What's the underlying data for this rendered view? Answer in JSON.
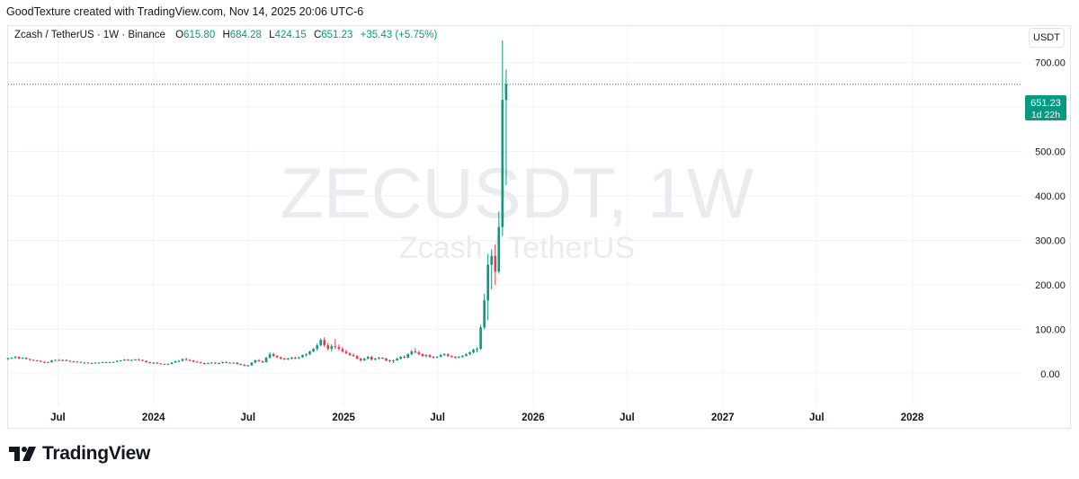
{
  "header": {
    "caption": "GoodTexture created with TradingView.com, Nov 14, 2025 20:06 UTC-6"
  },
  "legend": {
    "symbol": "Zcash / TetherUS · 1W · Binance",
    "o_key": "O",
    "o_val": "615.80",
    "h_key": "H",
    "h_val": "684.28",
    "l_key": "L",
    "l_val": "424.15",
    "c_key": "C",
    "c_val": "651.23",
    "change": "+35.43 (+5.75%)"
  },
  "currency": "USDT",
  "watermark": {
    "line1": "ZECUSDT, 1W",
    "line2": "Zcash / TetherUS"
  },
  "price_label": {
    "price": "651.23",
    "countdown": "1d 22h"
  },
  "brand": {
    "name": "TradingView"
  },
  "colors": {
    "up": "#089981",
    "down": "#f23645",
    "grid": "#f0f3fa",
    "text": "#131722"
  },
  "chart_data": {
    "type": "candlestick",
    "y_ticks": [
      "0.00",
      "100.00",
      "200.00",
      "300.00",
      "400.00",
      "500.00",
      "600.00",
      "700.00"
    ],
    "y_tick_values": [
      0,
      100,
      200,
      300,
      400,
      500,
      600,
      700
    ],
    "x_ticks": [
      {
        "label": "Jul",
        "date": "2023-07-01"
      },
      {
        "label": "2024",
        "date": "2024-01-01"
      },
      {
        "label": "Jul",
        "date": "2024-07-01"
      },
      {
        "label": "2025",
        "date": "2025-01-01"
      },
      {
        "label": "Jul",
        "date": "2025-07-01"
      },
      {
        "label": "2026",
        "date": "2026-01-01"
      },
      {
        "label": "Jul",
        "date": "2026-07-01"
      },
      {
        "label": "2027",
        "date": "2027-01-01"
      },
      {
        "label": "Jul",
        "date": "2027-07-01"
      },
      {
        "label": "2028",
        "date": "2028-01-01"
      }
    ],
    "x_range": [
      "2023-03-27",
      "2028-07-31"
    ],
    "y_range": [
      -73,
      782
    ],
    "last_price": 651.23,
    "candles": [
      [
        "2023-03-27",
        33,
        36,
        31,
        35
      ],
      [
        "2023-04-03",
        35,
        37,
        33,
        36
      ],
      [
        "2023-04-10",
        36,
        40,
        34,
        38
      ],
      [
        "2023-04-17",
        38,
        39,
        33,
        34
      ],
      [
        "2023-04-24",
        34,
        37,
        33,
        36
      ],
      [
        "2023-05-01",
        36,
        37,
        32,
        33
      ],
      [
        "2023-05-08",
        33,
        34,
        30,
        31
      ],
      [
        "2023-05-15",
        31,
        32,
        29,
        30
      ],
      [
        "2023-05-22",
        30,
        31,
        28,
        29
      ],
      [
        "2023-05-29",
        29,
        30,
        26,
        27
      ],
      [
        "2023-06-05",
        27,
        28,
        23,
        25
      ],
      [
        "2023-06-12",
        25,
        27,
        24,
        26
      ],
      [
        "2023-06-19",
        26,
        31,
        25,
        30
      ],
      [
        "2023-06-26",
        30,
        32,
        29,
        31
      ],
      [
        "2023-07-03",
        31,
        33,
        29,
        30
      ],
      [
        "2023-07-10",
        30,
        32,
        28,
        31
      ],
      [
        "2023-07-17",
        31,
        32,
        28,
        29
      ],
      [
        "2023-07-24",
        29,
        30,
        27,
        28
      ],
      [
        "2023-07-31",
        28,
        29,
        26,
        27
      ],
      [
        "2023-08-07",
        27,
        28,
        26,
        27
      ],
      [
        "2023-08-14",
        27,
        27,
        24,
        25
      ],
      [
        "2023-08-21",
        25,
        26,
        24,
        25
      ],
      [
        "2023-08-28",
        25,
        26,
        24,
        24
      ],
      [
        "2023-09-04",
        24,
        25,
        23,
        24
      ],
      [
        "2023-09-11",
        24,
        26,
        23,
        25
      ],
      [
        "2023-09-18",
        25,
        26,
        24,
        25
      ],
      [
        "2023-09-25",
        25,
        27,
        24,
        26
      ],
      [
        "2023-10-02",
        26,
        27,
        25,
        26
      ],
      [
        "2023-10-09",
        26,
        26,
        24,
        25
      ],
      [
        "2023-10-16",
        25,
        27,
        24,
        27
      ],
      [
        "2023-10-23",
        27,
        30,
        26,
        29
      ],
      [
        "2023-10-30",
        29,
        31,
        28,
        30
      ],
      [
        "2023-11-06",
        30,
        33,
        29,
        32
      ],
      [
        "2023-11-13",
        32,
        33,
        29,
        30
      ],
      [
        "2023-11-20",
        30,
        32,
        29,
        31
      ],
      [
        "2023-11-27",
        31,
        33,
        30,
        32
      ],
      [
        "2023-12-04",
        32,
        34,
        30,
        31
      ],
      [
        "2023-12-11",
        31,
        32,
        28,
        29
      ],
      [
        "2023-12-18",
        29,
        30,
        25,
        26
      ],
      [
        "2023-12-25",
        26,
        27,
        23,
        24
      ],
      [
        "2024-01-01",
        24,
        26,
        22,
        25
      ],
      [
        "2024-01-08",
        25,
        26,
        22,
        23
      ],
      [
        "2024-01-15",
        23,
        24,
        21,
        22
      ],
      [
        "2024-01-22",
        22,
        23,
        20,
        21
      ],
      [
        "2024-01-29",
        21,
        23,
        20,
        22
      ],
      [
        "2024-02-05",
        22,
        26,
        21,
        25
      ],
      [
        "2024-02-12",
        25,
        29,
        24,
        28
      ],
      [
        "2024-02-19",
        28,
        31,
        26,
        29
      ],
      [
        "2024-02-26",
        29,
        34,
        28,
        33
      ],
      [
        "2024-03-04",
        33,
        36,
        30,
        31
      ],
      [
        "2024-03-11",
        31,
        33,
        28,
        30
      ],
      [
        "2024-03-18",
        30,
        31,
        26,
        27
      ],
      [
        "2024-03-25",
        27,
        29,
        25,
        26
      ],
      [
        "2024-04-01",
        26,
        27,
        23,
        24
      ],
      [
        "2024-04-08",
        24,
        25,
        21,
        23
      ],
      [
        "2024-04-15",
        23,
        25,
        22,
        24
      ],
      [
        "2024-04-22",
        24,
        26,
        23,
        25
      ],
      [
        "2024-04-29",
        25,
        26,
        22,
        23
      ],
      [
        "2024-05-06",
        23,
        25,
        22,
        24
      ],
      [
        "2024-05-13",
        24,
        27,
        23,
        26
      ],
      [
        "2024-05-20",
        26,
        28,
        24,
        25
      ],
      [
        "2024-05-27",
        25,
        26,
        23,
        24
      ],
      [
        "2024-06-03",
        24,
        26,
        23,
        25
      ],
      [
        "2024-06-10",
        25,
        26,
        21,
        22
      ],
      [
        "2024-06-17",
        22,
        23,
        19,
        20
      ],
      [
        "2024-06-24",
        20,
        22,
        17,
        18
      ],
      [
        "2024-07-01",
        18,
        20,
        16,
        19
      ],
      [
        "2024-07-08",
        19,
        26,
        18,
        25
      ],
      [
        "2024-07-15",
        25,
        32,
        24,
        30
      ],
      [
        "2024-07-22",
        30,
        33,
        27,
        28
      ],
      [
        "2024-07-29",
        28,
        30,
        24,
        26
      ],
      [
        "2024-08-05",
        26,
        38,
        25,
        36
      ],
      [
        "2024-08-12",
        36,
        48,
        34,
        44
      ],
      [
        "2024-08-19",
        44,
        47,
        38,
        40
      ],
      [
        "2024-08-26",
        40,
        42,
        35,
        37
      ],
      [
        "2024-09-02",
        37,
        39,
        32,
        34
      ],
      [
        "2024-09-09",
        34,
        36,
        31,
        33
      ],
      [
        "2024-09-16",
        33,
        36,
        31,
        34
      ],
      [
        "2024-09-23",
        34,
        38,
        32,
        36
      ],
      [
        "2024-09-30",
        36,
        38,
        33,
        35
      ],
      [
        "2024-10-07",
        35,
        38,
        33,
        37
      ],
      [
        "2024-10-14",
        37,
        43,
        36,
        42
      ],
      [
        "2024-10-21",
        42,
        46,
        39,
        44
      ],
      [
        "2024-10-28",
        44,
        52,
        42,
        50
      ],
      [
        "2024-11-04",
        50,
        58,
        48,
        56
      ],
      [
        "2024-11-11",
        56,
        68,
        52,
        64
      ],
      [
        "2024-11-18",
        64,
        80,
        62,
        76
      ],
      [
        "2024-11-25",
        76,
        82,
        60,
        64
      ],
      [
        "2024-12-02",
        64,
        70,
        52,
        56
      ],
      [
        "2024-12-09",
        56,
        66,
        50,
        62
      ],
      [
        "2024-12-16",
        62,
        78,
        56,
        60
      ],
      [
        "2024-12-23",
        60,
        66,
        52,
        56
      ],
      [
        "2024-12-30",
        56,
        60,
        48,
        50
      ],
      [
        "2025-01-06",
        50,
        54,
        44,
        46
      ],
      [
        "2025-01-13",
        46,
        48,
        40,
        42
      ],
      [
        "2025-01-20",
        42,
        46,
        38,
        40
      ],
      [
        "2025-01-27",
        40,
        42,
        32,
        34
      ],
      [
        "2025-02-03",
        34,
        36,
        27,
        30
      ],
      [
        "2025-02-10",
        30,
        36,
        29,
        34
      ],
      [
        "2025-02-17",
        34,
        40,
        32,
        38
      ],
      [
        "2025-02-24",
        38,
        40,
        30,
        32
      ],
      [
        "2025-03-03",
        32,
        36,
        30,
        34
      ],
      [
        "2025-03-10",
        34,
        38,
        32,
        36
      ],
      [
        "2025-03-17",
        36,
        37,
        33,
        34
      ],
      [
        "2025-03-24",
        34,
        36,
        28,
        30
      ],
      [
        "2025-03-31",
        30,
        32,
        26,
        28
      ],
      [
        "2025-04-07",
        28,
        32,
        24,
        30
      ],
      [
        "2025-04-14",
        30,
        36,
        29,
        34
      ],
      [
        "2025-04-21",
        34,
        40,
        32,
        38
      ],
      [
        "2025-04-28",
        38,
        42,
        34,
        36
      ],
      [
        "2025-05-05",
        36,
        46,
        35,
        44
      ],
      [
        "2025-05-12",
        44,
        54,
        42,
        50
      ],
      [
        "2025-05-19",
        50,
        58,
        46,
        48
      ],
      [
        "2025-05-26",
        48,
        52,
        42,
        44
      ],
      [
        "2025-06-02",
        44,
        46,
        38,
        40
      ],
      [
        "2025-06-09",
        40,
        44,
        36,
        42
      ],
      [
        "2025-06-16",
        42,
        44,
        36,
        38
      ],
      [
        "2025-06-23",
        38,
        40,
        34,
        36
      ],
      [
        "2025-06-30",
        36,
        40,
        35,
        38
      ],
      [
        "2025-07-07",
        38,
        44,
        37,
        42
      ],
      [
        "2025-07-14",
        42,
        46,
        40,
        44
      ],
      [
        "2025-07-21",
        44,
        46,
        38,
        40
      ],
      [
        "2025-07-28",
        40,
        42,
        36,
        38
      ],
      [
        "2025-08-04",
        38,
        40,
        34,
        36
      ],
      [
        "2025-08-11",
        36,
        40,
        35,
        38
      ],
      [
        "2025-08-18",
        38,
        42,
        36,
        40
      ],
      [
        "2025-08-25",
        40,
        46,
        39,
        44
      ],
      [
        "2025-09-01",
        44,
        50,
        42,
        48
      ],
      [
        "2025-09-08",
        48,
        56,
        46,
        54
      ],
      [
        "2025-09-15",
        54,
        60,
        48,
        56
      ],
      [
        "2025-09-22",
        56,
        110,
        54,
        104
      ],
      [
        "2025-09-29",
        104,
        180,
        100,
        165
      ],
      [
        "2025-10-06",
        165,
        270,
        120,
        245
      ],
      [
        "2025-10-13",
        245,
        280,
        190,
        265
      ],
      [
        "2025-10-20",
        265,
        290,
        200,
        230
      ],
      [
        "2025-10-27",
        230,
        365,
        225,
        330
      ],
      [
        "2025-11-03",
        330,
        750,
        310,
        616
      ],
      [
        "2025-11-10",
        615.8,
        684.28,
        424.15,
        651.23
      ]
    ]
  }
}
